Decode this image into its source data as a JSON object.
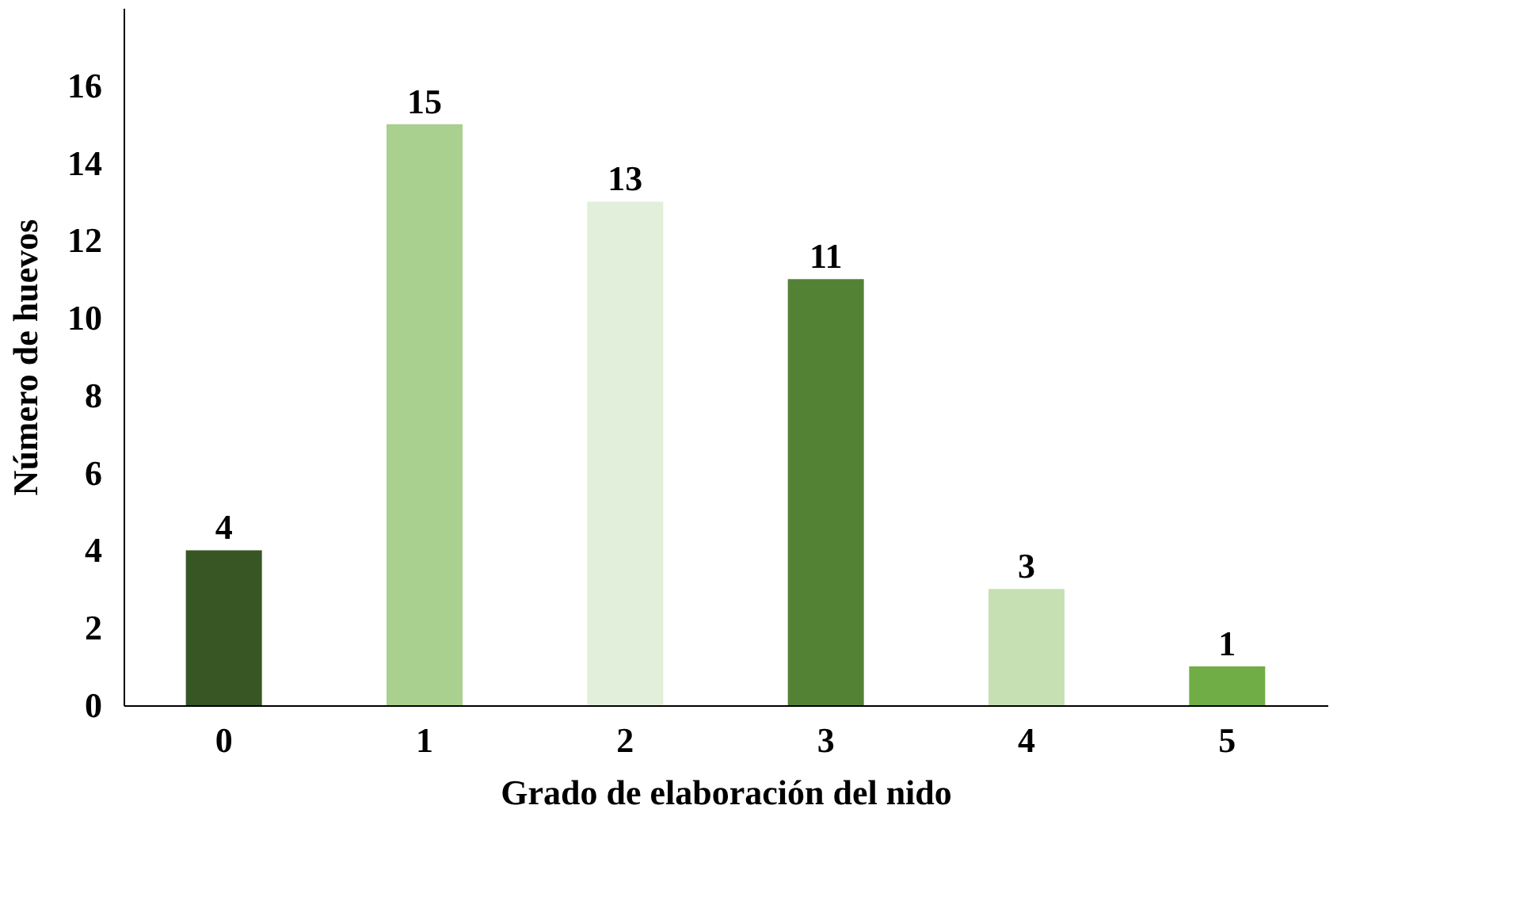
{
  "chart_data": {
    "type": "bar",
    "xlabel": "Grado de elaboración del nido",
    "ylabel": "Número de huevos",
    "categories": [
      "0",
      "1",
      "2",
      "3",
      "4",
      "5"
    ],
    "values": [
      4,
      15,
      13,
      11,
      3,
      1
    ],
    "colors": [
      "#375623",
      "#a9d08e",
      "#e2efda",
      "#548235",
      "#c6e0b4",
      "#70ad47"
    ],
    "ylim": [
      0,
      18
    ],
    "yticks": [
      0,
      2,
      4,
      6,
      8,
      10,
      12,
      14,
      16
    ],
    "grid": false,
    "data_labels": true
  }
}
